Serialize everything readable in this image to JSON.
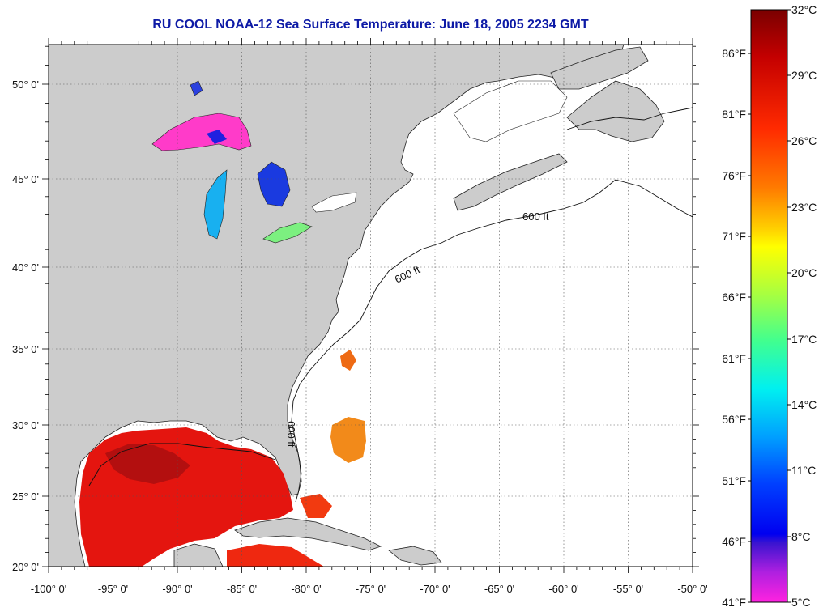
{
  "title": "RU COOL  NOAA-12  Sea Surface Temperature:  June 18, 2005 2234 GMT",
  "longitude_labels": [
    "-100° 0'",
    "-95° 0'",
    "-90° 0'",
    "-85° 0'",
    "-80° 0'",
    "-75° 0'",
    "-70° 0'",
    "-65° 0'",
    "-60° 0'",
    "-55° 0'",
    "-50° 0'"
  ],
  "latitude_labels": [
    "50° 0'",
    "45° 0'",
    "40° 0'",
    "35° 0'",
    "30° 0'",
    "25° 0'",
    "20° 0'"
  ],
  "isobath_label": "600 ft",
  "colorbar": {
    "celsius_labels": [
      "32°C",
      "29°C",
      "26°C",
      "23°C",
      "20°C",
      "17°C",
      "14°C",
      "11°C",
      "8°C",
      "5°C"
    ],
    "fahrenheit_labels": [
      "86°F",
      "81°F",
      "76°F",
      "71°F",
      "66°F",
      "61°F",
      "56°F",
      "51°F",
      "46°F",
      "41°F"
    ],
    "colors": [
      "#7a0000",
      "#c40000",
      "#ff2a00",
      "#ff6a00",
      "#ffb000",
      "#ffff00",
      "#b8ff30",
      "#40ff80",
      "#00ffd8",
      "#00b8ff",
      "#0050ff",
      "#0000ff",
      "#3010d8",
      "#8a28d8",
      "#ff20e0"
    ]
  },
  "colors": {
    "title": "#0d1aa6",
    "land": "#cccccc",
    "ocean_no_data": "#ffffff"
  }
}
